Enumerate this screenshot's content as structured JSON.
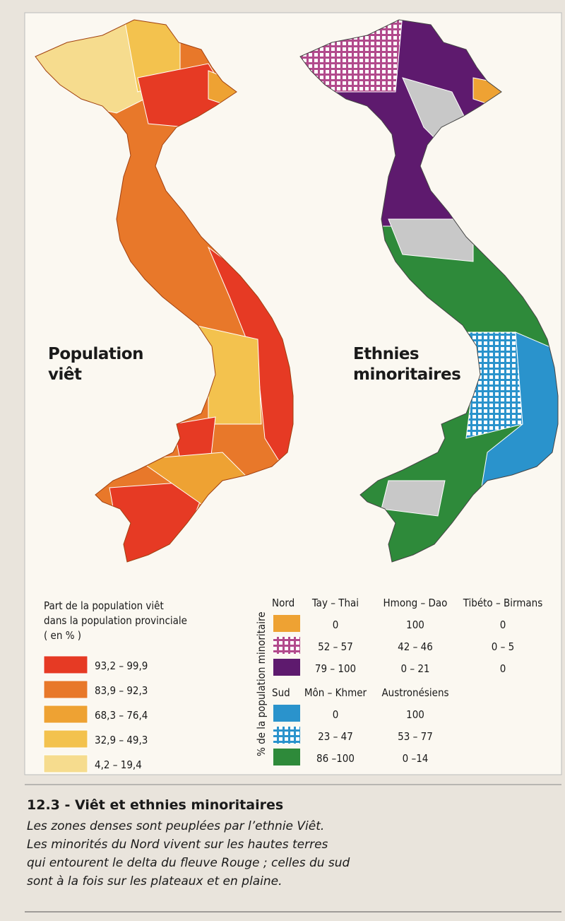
{
  "left_map": {
    "title": [
      "Population",
      "viêt"
    ]
  },
  "right_map": {
    "title": [
      "Ethnies",
      "minoritaires"
    ]
  },
  "left_legend": {
    "heading": [
      "Part de la population viêt",
      "dans la population provinciale",
      "( en % )"
    ],
    "items": [
      {
        "label": "93,2 – 99,9",
        "color": "#e63a24"
      },
      {
        "label": "83,9 – 92,3",
        "color": "#e8782a"
      },
      {
        "label": "68,3 – 76,4",
        "color": "#eea233"
      },
      {
        "label": "32,9 – 49,3",
        "color": "#f3c24e"
      },
      {
        "label": "4,2 – 19,4",
        "color": "#f6dc8e"
      }
    ]
  },
  "right_legend": {
    "axis_label": "% de la population minoritaire",
    "groups": [
      {
        "name": "Nord",
        "columns": [
          "Tay – Thai",
          "Hmong – Dao",
          "Tibéto – Birmans"
        ],
        "rows": [
          {
            "color": "#eea233",
            "pattern": "solid",
            "values": [
              "0",
              "100",
              "0"
            ]
          },
          {
            "color": "#b24a8c",
            "pattern": "check",
            "values": [
              "52 – 57",
              "42 – 46",
              "0 – 5"
            ]
          },
          {
            "color": "#5e1a6e",
            "pattern": "solid",
            "values": [
              "79 – 100",
              "0 – 21",
              "0"
            ]
          }
        ]
      },
      {
        "name": "Sud",
        "columns": [
          "Môn – Khmer",
          "Austronésiens"
        ],
        "rows": [
          {
            "color": "#2a93cc",
            "pattern": "solid",
            "values": [
              "0",
              "100"
            ]
          },
          {
            "color": "#2a93cc",
            "pattern": "check",
            "values": [
              "23 – 47",
              "53 – 77"
            ]
          },
          {
            "color": "#2e8a3a",
            "pattern": "solid",
            "values": [
              "86 –100",
              "0 –14"
            ]
          }
        ]
      }
    ]
  },
  "caption": {
    "title": "12.3 - Viêt et ethnies minoritaires",
    "lines": [
      "Les zones denses sont peuplées par l’ethnie Viêt.",
      "Les minorités du Nord vivent sur les hautes terres",
      "qui entourent le delta du fleuve Rouge ; celles du sud",
      "sont à la fois sur les plateaux et en plaine."
    ]
  }
}
